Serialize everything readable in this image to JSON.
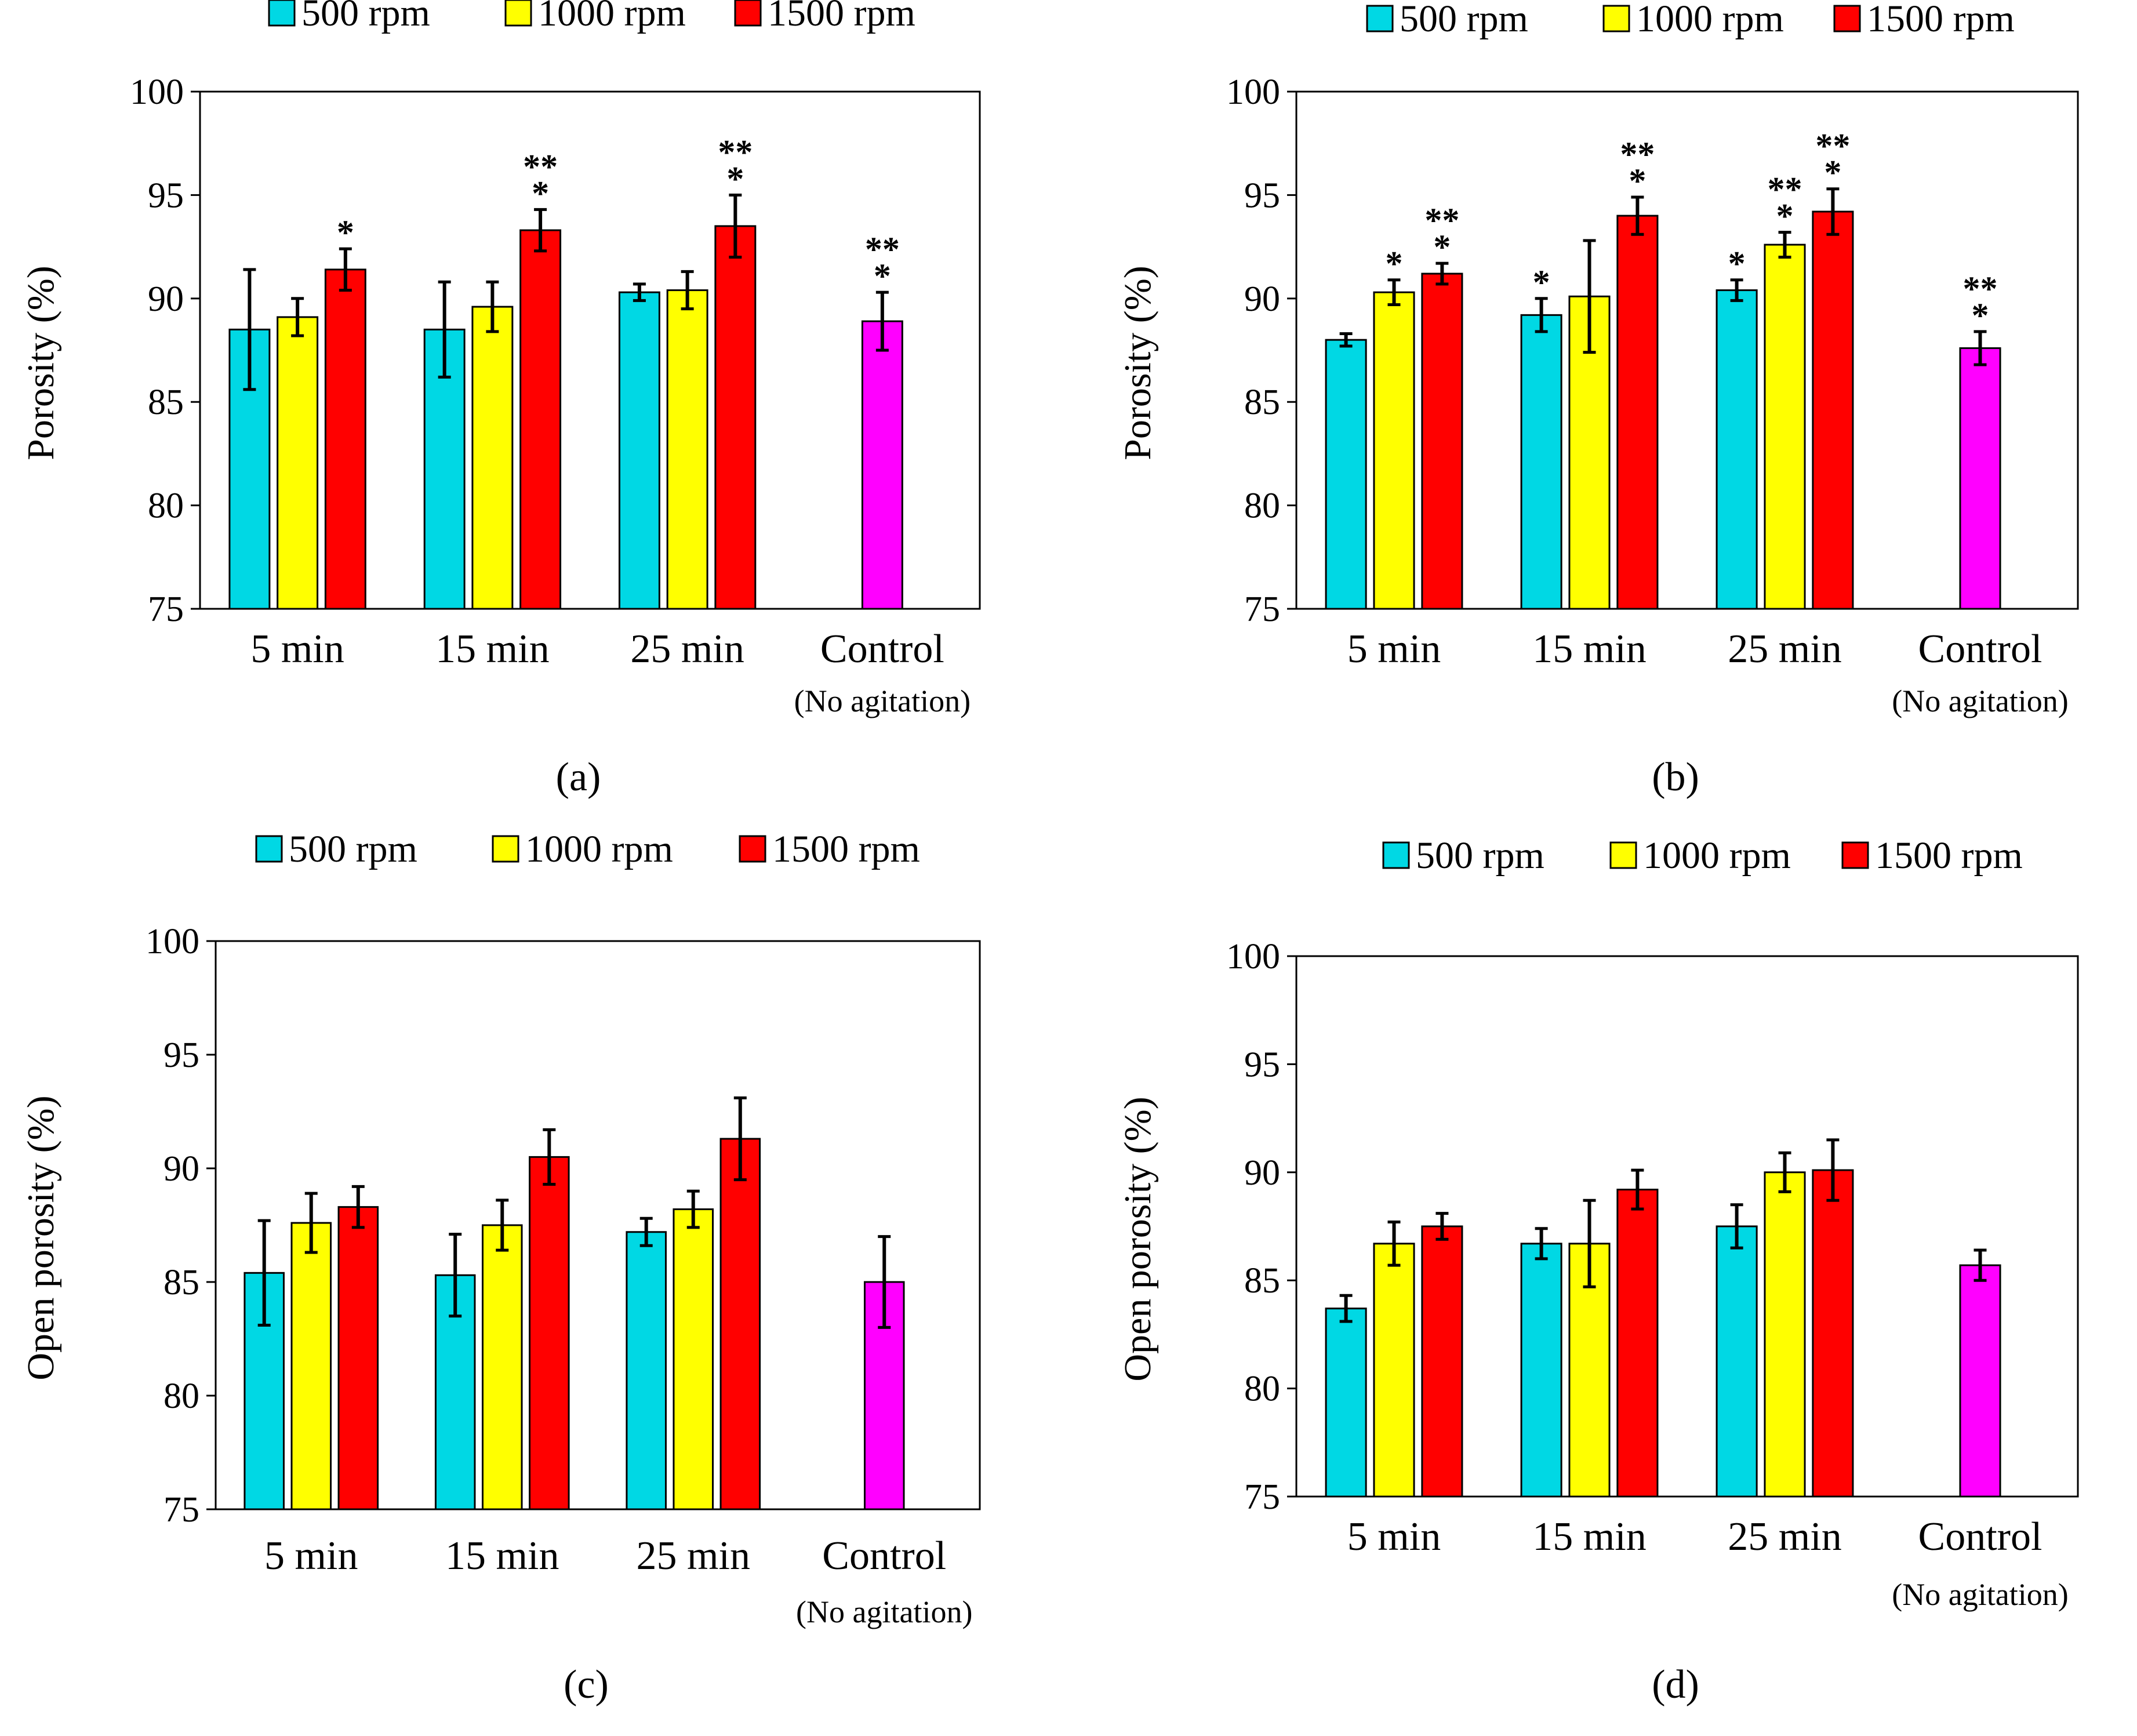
{
  "colors": {
    "500 rpm": "#00d8e4",
    "1000 rpm": "#ffff00",
    "1500 rpm": "#ff0000",
    "control": "#ff00ff"
  },
  "chart_data": [
    {
      "type": "bar",
      "panel_label": "(a)",
      "ylabel": "Porosity (%)",
      "ylim": [
        75,
        100
      ],
      "yticks": [
        75,
        80,
        85,
        90,
        95,
        100
      ],
      "grid": false,
      "legend_position": "top",
      "legend": [
        "500 rpm",
        "1000 rpm",
        "1500 rpm"
      ],
      "groups": [
        {
          "label": "5 min",
          "sublabel": "",
          "bars": [
            {
              "series": "500 rpm",
              "value": 88.5,
              "error": 2.9,
              "sig": ""
            },
            {
              "series": "1000 rpm",
              "value": 89.1,
              "error": 0.9,
              "sig": ""
            },
            {
              "series": "1500 rpm",
              "value": 91.4,
              "error": 1.0,
              "sig": "*"
            }
          ]
        },
        {
          "label": "15 min",
          "sublabel": "",
          "bars": [
            {
              "series": "500 rpm",
              "value": 88.5,
              "error": 2.3,
              "sig": ""
            },
            {
              "series": "1000 rpm",
              "value": 89.6,
              "error": 1.2,
              "sig": ""
            },
            {
              "series": "1500 rpm",
              "value": 93.3,
              "error": 1.0,
              "sig": "**\n*"
            }
          ]
        },
        {
          "label": "25 min",
          "sublabel": "",
          "bars": [
            {
              "series": "500 rpm",
              "value": 90.3,
              "error": 0.4,
              "sig": ""
            },
            {
              "series": "1000 rpm",
              "value": 90.4,
              "error": 0.9,
              "sig": ""
            },
            {
              "series": "1500 rpm",
              "value": 93.5,
              "error": 1.5,
              "sig": "**\n*"
            }
          ]
        },
        {
          "label": "Control",
          "sublabel": "(No agitation)",
          "bars": [
            {
              "series": "control",
              "value": 88.9,
              "error": 1.4,
              "sig": "**\n*"
            }
          ]
        }
      ]
    },
    {
      "type": "bar",
      "panel_label": "(b)",
      "ylabel": "Porosity (%)",
      "ylim": [
        75,
        100
      ],
      "yticks": [
        75,
        80,
        85,
        90,
        95,
        100
      ],
      "grid": false,
      "legend_position": "top",
      "legend": [
        "500 rpm",
        "1000 rpm",
        "1500 rpm"
      ],
      "groups": [
        {
          "label": "5 min",
          "sublabel": "",
          "bars": [
            {
              "series": "500 rpm",
              "value": 88.0,
              "error": 0.3,
              "sig": ""
            },
            {
              "series": "1000 rpm",
              "value": 90.3,
              "error": 0.6,
              "sig": "*"
            },
            {
              "series": "1500 rpm",
              "value": 91.2,
              "error": 0.5,
              "sig": "**\n*"
            }
          ]
        },
        {
          "label": "15 min",
          "sublabel": "",
          "bars": [
            {
              "series": "500 rpm",
              "value": 89.2,
              "error": 0.8,
              "sig": "*"
            },
            {
              "series": "1000 rpm",
              "value": 90.1,
              "error": 2.7,
              "sig": ""
            },
            {
              "series": "1500 rpm",
              "value": 94.0,
              "error": 0.9,
              "sig": "**\n*"
            }
          ]
        },
        {
          "label": "25 min",
          "sublabel": "",
          "bars": [
            {
              "series": "500 rpm",
              "value": 90.4,
              "error": 0.5,
              "sig": "*"
            },
            {
              "series": "1000 rpm",
              "value": 92.6,
              "error": 0.6,
              "sig": "**\n*"
            },
            {
              "series": "1500 rpm",
              "value": 94.2,
              "error": 1.1,
              "sig": "**\n*"
            }
          ]
        },
        {
          "label": "Control",
          "sublabel": "(No agitation)",
          "bars": [
            {
              "series": "control",
              "value": 87.6,
              "error": 0.8,
              "sig": "**\n*"
            }
          ]
        }
      ]
    },
    {
      "type": "bar",
      "panel_label": "(c)",
      "ylabel": "Open porosity (%)",
      "ylim": [
        75,
        100
      ],
      "yticks": [
        75,
        80,
        85,
        90,
        95,
        100
      ],
      "grid": false,
      "legend_position": "top",
      "legend": [
        "500 rpm",
        "1000 rpm",
        "1500 rpm"
      ],
      "groups": [
        {
          "label": "5 min",
          "sublabel": "",
          "bars": [
            {
              "series": "500 rpm",
              "value": 85.4,
              "error": 2.3,
              "sig": ""
            },
            {
              "series": "1000 rpm",
              "value": 87.6,
              "error": 1.3,
              "sig": ""
            },
            {
              "series": "1500 rpm",
              "value": 88.3,
              "error": 0.9,
              "sig": ""
            }
          ]
        },
        {
          "label": "15 min",
          "sublabel": "",
          "bars": [
            {
              "series": "500 rpm",
              "value": 85.3,
              "error": 1.8,
              "sig": ""
            },
            {
              "series": "1000 rpm",
              "value": 87.5,
              "error": 1.1,
              "sig": ""
            },
            {
              "series": "1500 rpm",
              "value": 90.5,
              "error": 1.2,
              "sig": ""
            }
          ]
        },
        {
          "label": "25 min",
          "sublabel": "",
          "bars": [
            {
              "series": "500 rpm",
              "value": 87.2,
              "error": 0.6,
              "sig": ""
            },
            {
              "series": "1000 rpm",
              "value": 88.2,
              "error": 0.8,
              "sig": ""
            },
            {
              "series": "1500 rpm",
              "value": 91.3,
              "error": 1.8,
              "sig": ""
            }
          ]
        },
        {
          "label": "Control",
          "sublabel": "(No agitation)",
          "bars": [
            {
              "series": "control",
              "value": 85.0,
              "error": 2.0,
              "sig": ""
            }
          ]
        }
      ]
    },
    {
      "type": "bar",
      "panel_label": "(d)",
      "ylabel": "Open porosity (%)",
      "ylim": [
        75,
        100
      ],
      "yticks": [
        75,
        80,
        85,
        90,
        95,
        100
      ],
      "grid": false,
      "legend_position": "top",
      "legend": [
        "500 rpm",
        "1000 rpm",
        "1500 rpm"
      ],
      "groups": [
        {
          "label": "5 min",
          "sublabel": "",
          "bars": [
            {
              "series": "500 rpm",
              "value": 83.7,
              "error": 0.6,
              "sig": ""
            },
            {
              "series": "1000 rpm",
              "value": 86.7,
              "error": 1.0,
              "sig": ""
            },
            {
              "series": "1500 rpm",
              "value": 87.5,
              "error": 0.6,
              "sig": ""
            }
          ]
        },
        {
          "label": "15 min",
          "sublabel": "",
          "bars": [
            {
              "series": "500 rpm",
              "value": 86.7,
              "error": 0.7,
              "sig": ""
            },
            {
              "series": "1000 rpm",
              "value": 86.7,
              "error": 2.0,
              "sig": ""
            },
            {
              "series": "1500 rpm",
              "value": 89.2,
              "error": 0.9,
              "sig": ""
            }
          ]
        },
        {
          "label": "25 min",
          "sublabel": "",
          "bars": [
            {
              "series": "500 rpm",
              "value": 87.5,
              "error": 1.0,
              "sig": ""
            },
            {
              "series": "1000 rpm",
              "value": 90.0,
              "error": 0.9,
              "sig": ""
            },
            {
              "series": "1500 rpm",
              "value": 90.1,
              "error": 1.4,
              "sig": ""
            }
          ]
        },
        {
          "label": "Control",
          "sublabel": "(No agitation)",
          "bars": [
            {
              "series": "control",
              "value": 85.7,
              "error": 0.7,
              "sig": ""
            }
          ]
        }
      ]
    }
  ]
}
